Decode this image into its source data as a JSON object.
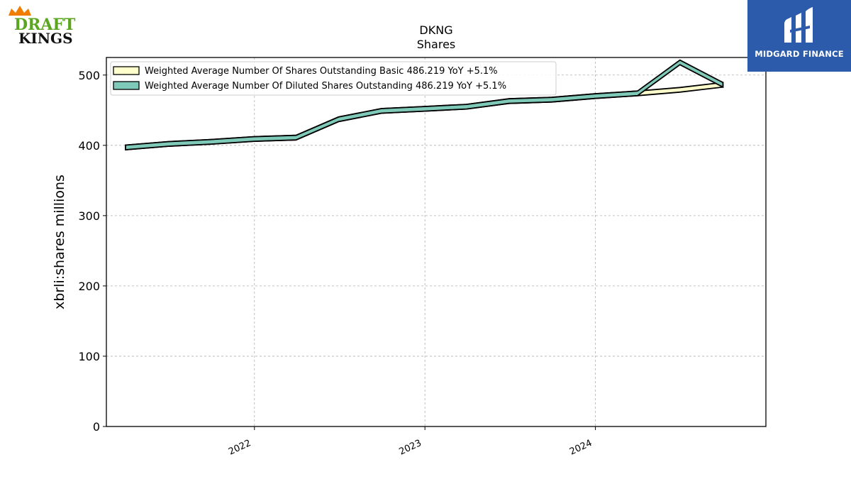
{
  "logos": {
    "left": {
      "line1": "DRAFT",
      "line2": "KINGS",
      "colors": {
        "green": "#5aa61e",
        "orange": "#f07d00",
        "black": "#111111"
      }
    },
    "right": {
      "name": "MIDGARD FINANCE",
      "background": "#2d5bab"
    }
  },
  "chart_data": {
    "type": "line",
    "title": "DKNG",
    "subtitle": "Shares",
    "xlabel": "",
    "ylabel": "xbrli:shares millions",
    "ylim": [
      0,
      525
    ],
    "yticks": [
      0,
      100,
      200,
      300,
      400,
      500
    ],
    "xlim": [
      "2021-02-18",
      "2024-12-31"
    ],
    "xticks": [
      {
        "label": "2022",
        "date": "2022-01-01"
      },
      {
        "label": "2023",
        "date": "2023-01-01"
      },
      {
        "label": "2024",
        "date": "2024-01-01"
      }
    ],
    "x": [
      "2021-03-31",
      "2021-06-30",
      "2021-09-30",
      "2021-12-31",
      "2022-03-31",
      "2022-06-30",
      "2022-09-30",
      "2022-12-31",
      "2023-03-31",
      "2023-06-30",
      "2023-09-30",
      "2023-12-31",
      "2024-03-31",
      "2024-06-30",
      "2024-09-30"
    ],
    "series": [
      {
        "name": "Weighted Average Number Of Shares Outstanding Basic",
        "legend_label": "Weighted Average Number Of Shares Outstanding Basic  486.219 YoY +5.1%",
        "color": "#ffffcc",
        "values": [
          397,
          402,
          405,
          409,
          411,
          437,
          449,
          452,
          455,
          463,
          465,
          470,
          474,
          479,
          486.219
        ]
      },
      {
        "name": "Weighted Average Number Of Diluted Shares Outstanding",
        "legend_label": "Weighted Average Number Of Diluted Shares Outstanding  486.219 YoY +5.1%",
        "color": "#7fc9b9",
        "values": [
          397,
          402,
          405,
          409,
          411,
          437,
          449,
          452,
          455,
          463,
          465,
          470,
          474,
          518,
          486.219
        ]
      }
    ],
    "grid": true,
    "legend_position": "top-left"
  }
}
